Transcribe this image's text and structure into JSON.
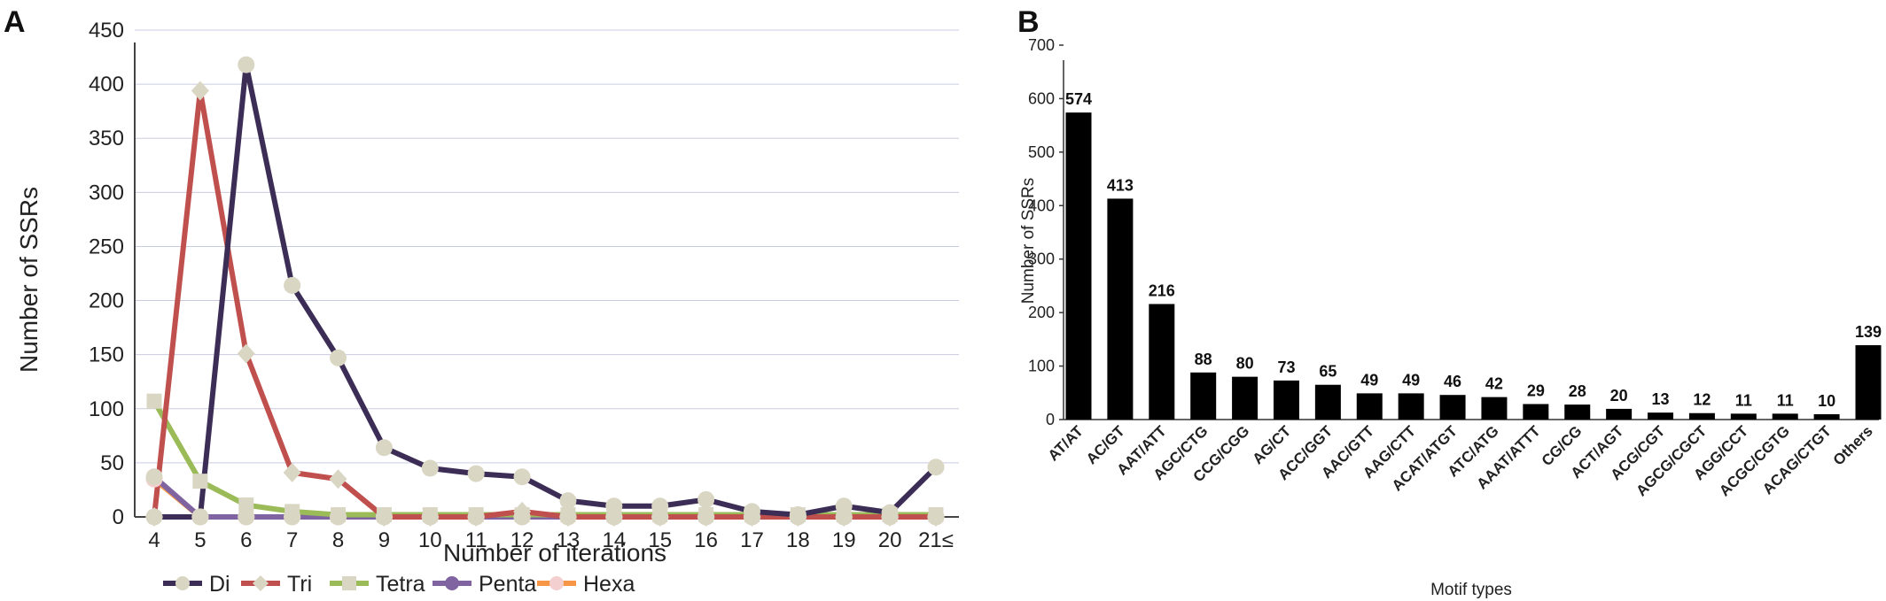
{
  "panel_labels": {
    "a": "A",
    "b": "B"
  },
  "chart_data": [
    {
      "type": "line",
      "xlabel": "Number of iterations",
      "ylabel": "Number of SSRs",
      "categories": [
        "4",
        "5",
        "6",
        "7",
        "8",
        "9",
        "10",
        "11",
        "12",
        "13",
        "14",
        "15",
        "16",
        "17",
        "18",
        "19",
        "20",
        "21≤"
      ],
      "ylim": [
        0,
        450
      ],
      "yticks": [
        0,
        50,
        100,
        150,
        200,
        250,
        300,
        350,
        400,
        450
      ],
      "grid": true,
      "legend_position": "bottom",
      "series": [
        {
          "name": "Di",
          "color": "#3b2d55",
          "marker": "circle",
          "values": [
            0,
            0,
            418,
            214,
            147,
            64,
            45,
            40,
            37,
            15,
            10,
            10,
            16,
            5,
            2,
            10,
            4,
            46
          ]
        },
        {
          "name": "Tri",
          "color": "#c0504d",
          "marker": "diamond",
          "values": [
            0,
            394,
            151,
            41,
            35,
            0,
            0,
            0,
            5,
            0,
            0,
            0,
            0,
            0,
            0,
            0,
            0,
            0
          ]
        },
        {
          "name": "Tetra",
          "color": "#9bbb59",
          "marker": "square",
          "values": [
            107,
            33,
            11,
            5,
            2,
            2,
            2,
            2,
            2,
            2,
            2,
            2,
            2,
            2,
            2,
            2,
            2,
            2
          ]
        },
        {
          "name": "Penta",
          "color": "#8064a2",
          "marker": "circle",
          "values": [
            37,
            0,
            0,
            0,
            0,
            0,
            0,
            0,
            0,
            0,
            0,
            0,
            0,
            0,
            0,
            0,
            0,
            0
          ]
        },
        {
          "name": "Hexa",
          "color": "#f79646",
          "marker": "circle",
          "values": [
            35,
            0,
            0,
            0,
            0,
            0,
            0,
            0,
            0,
            0,
            0,
            0,
            0,
            0,
            0,
            0,
            0,
            0
          ]
        }
      ],
      "marker_fill": "#d9d6c3",
      "hexa_marker_fill": "#f4cfcf"
    },
    {
      "type": "bar",
      "xlabel": "Motif types",
      "ylabel": "Number of SSRs",
      "categories": [
        "AT/AT",
        "AC/GT",
        "AAT/ATT",
        "AGC/CTG",
        "CCG/CGG",
        "AG/CT",
        "ACC/GGT",
        "AAC/GTT",
        "AAG/CTT",
        "ACAT/ATGT",
        "ATC/ATG",
        "AAAT/ATTT",
        "CG/CG",
        "ACT/AGT",
        "ACG/CGT",
        "AGCG/CGCT",
        "AGG/CCT",
        "ACGC/CGTG",
        "ACAG/CTGT",
        "Others"
      ],
      "values": [
        574,
        413,
        216,
        88,
        80,
        73,
        65,
        49,
        49,
        46,
        42,
        29,
        28,
        20,
        13,
        12,
        11,
        11,
        10,
        139
      ],
      "data_labels": [
        "574",
        "413",
        "216",
        "88",
        "80",
        "73",
        "65",
        "49",
        "49",
        "46",
        "42",
        "29",
        "28",
        "20",
        "13",
        "12",
        "11",
        "11",
        "10",
        "139"
      ],
      "ylim": [
        0,
        700
      ],
      "yticks": [
        0,
        100,
        200,
        300,
        400,
        500,
        600,
        700
      ],
      "bar_color": "#000000",
      "grid": false
    }
  ]
}
